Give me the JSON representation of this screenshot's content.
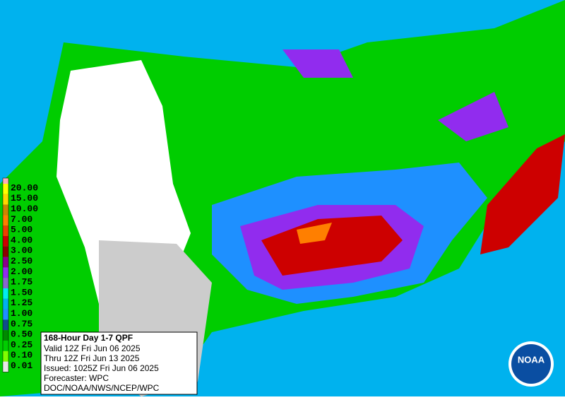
{
  "map": {
    "legend": [
      {
        "label": "20.00",
        "color": "#ffff00"
      },
      {
        "label": "15.00",
        "color": "#ffd700"
      },
      {
        "label": "10.00",
        "color": "#cd8500"
      },
      {
        "label": "7.00",
        "color": "#ff7f00"
      },
      {
        "label": "5.00",
        "color": "#ee4000"
      },
      {
        "label": "4.00",
        "color": "#cd0000"
      },
      {
        "label": "3.00",
        "color": "#8b0000"
      },
      {
        "label": "2.50",
        "color": "#8b008b"
      },
      {
        "label": "2.00",
        "color": "#912cee"
      },
      {
        "label": "1.75",
        "color": "#8968cd"
      },
      {
        "label": "1.50",
        "color": "#00eeee"
      },
      {
        "label": "1.25",
        "color": "#00b2ee"
      },
      {
        "label": "1.00",
        "color": "#1e90ff"
      },
      {
        "label": "0.75",
        "color": "#104e8b"
      },
      {
        "label": "0.50",
        "color": "#008b00"
      },
      {
        "label": "0.25",
        "color": "#00cd00"
      },
      {
        "label": "0.10",
        "color": "#7fff00"
      },
      {
        "label": "0.01",
        "color": "#e8e8e8"
      }
    ],
    "info": {
      "title": "168-Hour Day 1-7 QPF",
      "lines": [
        "Valid 12Z Fri Jun 06 2025",
        "Thru 12Z Fri Jun 13 2025",
        "Issued: 1025Z Fri Jun 06 2025",
        "Forecaster: WPC",
        "DOC/NOAA/NWS/NCEP/WPC"
      ]
    },
    "logo": "NOAA"
  }
}
